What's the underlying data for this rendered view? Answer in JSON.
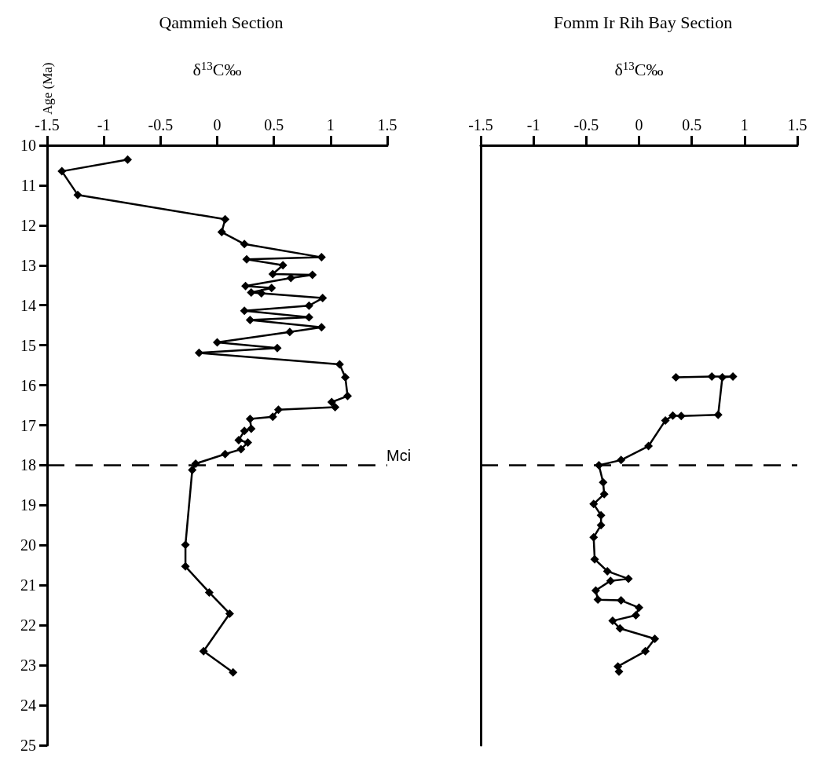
{
  "chart_data": [
    {
      "type": "line",
      "title": "Qammieh Section",
      "xlabel": "δ$^{13}$C‰",
      "ylabel": "Age (Ma)",
      "marker": "diamond",
      "line_style": "solid",
      "xlim": [
        -1.5,
        1.5
      ],
      "xticks": [
        -1.5,
        -1,
        -0.5,
        0,
        0.5,
        1,
        1.5
      ],
      "ylim": [
        25,
        10
      ],
      "yticks": [
        10,
        11,
        12,
        13,
        14,
        15,
        16,
        17,
        18,
        19,
        20,
        21,
        22,
        23,
        24,
        25
      ],
      "ref_lines": [
        {
          "axis": "y",
          "value": 18,
          "label": "Mci",
          "line_style": "dashed",
          "color": "#000000"
        }
      ],
      "series": [
        {
          "color": "#000000",
          "x": [
            -0.79,
            -1.37,
            -1.23,
            0.07,
            0.04,
            0.24,
            0.92,
            0.26,
            0.58,
            0.49,
            0.84,
            0.65,
            0.25,
            0.48,
            0.3,
            0.39,
            0.93,
            0.81,
            0.24,
            0.81,
            0.29,
            0.92,
            0.64,
            0.0,
            0.53,
            -0.16,
            1.08,
            1.13,
            1.15,
            1.01,
            1.04,
            0.54,
            0.49,
            0.29,
            0.3,
            0.24,
            0.19,
            0.27,
            0.21,
            0.07,
            -0.19,
            -0.22,
            -0.28,
            -0.28,
            -0.07,
            0.11,
            -0.12,
            0.14
          ],
          "values": [
            10.36,
            10.65,
            11.24,
            11.85,
            12.17,
            12.47,
            12.8,
            12.85,
            13.0,
            13.22,
            13.24,
            13.32,
            13.52,
            13.57,
            13.68,
            13.7,
            13.82,
            14.01,
            14.14,
            14.3,
            14.37,
            14.55,
            14.67,
            14.93,
            15.07,
            15.19,
            15.48,
            15.8,
            16.27,
            16.42,
            16.55,
            16.61,
            16.79,
            16.84,
            17.09,
            17.14,
            17.37,
            17.43,
            17.6,
            17.72,
            17.96,
            18.12,
            19.99,
            20.53,
            21.18,
            21.71,
            22.65,
            23.18
          ]
        }
      ]
    },
    {
      "type": "line",
      "title": "Fomm Ir Rih Bay Section",
      "xlabel": "δ$^{13}$C‰",
      "marker": "diamond",
      "line_style": "solid",
      "tick_labels": "x",
      "xlim": [
        -1.5,
        1.5
      ],
      "xticks": [
        -1.5,
        -1,
        -0.5,
        0,
        0.5,
        1,
        1.5
      ],
      "ylim": [
        25,
        10
      ],
      "ref_lines": [
        {
          "axis": "y",
          "value": 18,
          "line_style": "dashed",
          "color": "#000000"
        }
      ],
      "series": [
        {
          "color": "#000000",
          "x": [
            0.35,
            0.69,
            0.89,
            0.79,
            0.75,
            0.4,
            0.32,
            0.25,
            0.09,
            -0.17,
            -0.38,
            -0.34,
            -0.33,
            -0.43,
            -0.36,
            -0.36,
            -0.43,
            -0.42,
            -0.3,
            -0.1,
            -0.27,
            -0.41,
            -0.39,
            -0.17,
            0.0,
            -0.03,
            -0.25,
            -0.18,
            0.15,
            0.06,
            -0.2,
            -0.19
          ],
          "values": [
            15.8,
            15.78,
            15.78,
            15.8,
            16.74,
            16.77,
            16.76,
            16.88,
            17.52,
            17.87,
            18.0,
            18.43,
            18.72,
            18.97,
            19.25,
            19.5,
            19.8,
            20.35,
            20.65,
            20.84,
            20.89,
            21.13,
            21.36,
            21.38,
            21.56,
            21.75,
            21.89,
            22.08,
            22.34,
            22.65,
            23.03,
            23.16
          ]
        }
      ]
    }
  ]
}
